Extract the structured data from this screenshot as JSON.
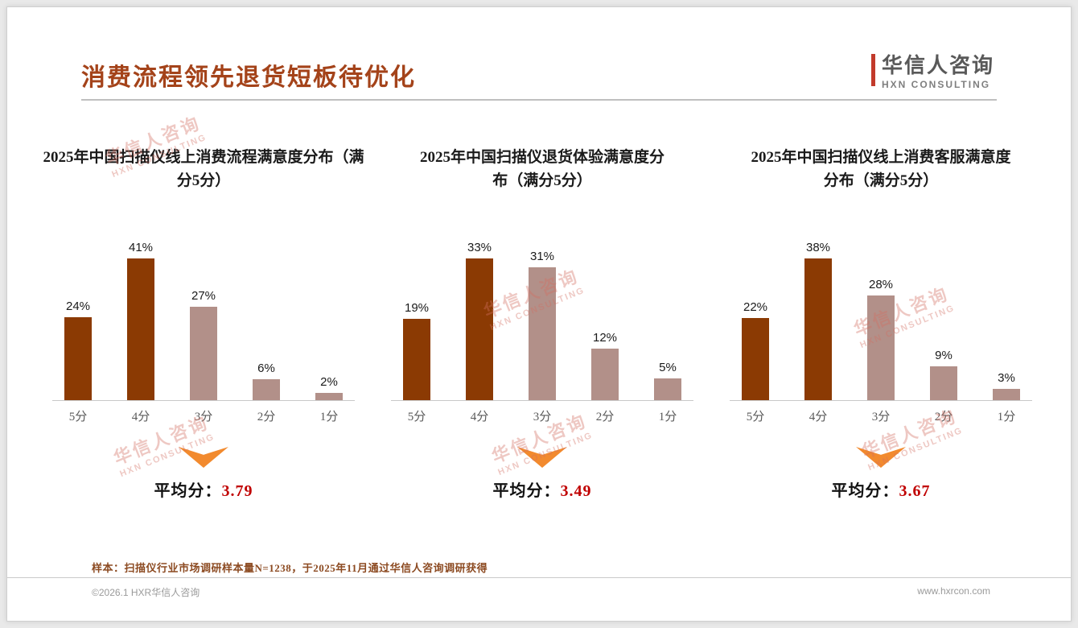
{
  "header": {
    "title": "消费流程领先退货短板待优化"
  },
  "brand": {
    "name": "华信人咨询",
    "tagline": "HXN CONSULTING"
  },
  "watermark": {
    "line1": "华信人咨询",
    "line2": "HXN CONSULTING"
  },
  "colors": {
    "title": "#A4431A",
    "bar_dark": "#8B3A03",
    "bar_light": "#B29089",
    "arrow": "#F28A2E",
    "average_value": "#C00000"
  },
  "chart_data": [
    {
      "type": "bar",
      "title": "2025年中国扫描仪线上消费流程满意度分布（满分5分）",
      "categories": [
        "5分",
        "4分",
        "3分",
        "2分",
        "1分"
      ],
      "values": [
        24,
        41,
        27,
        6,
        2
      ],
      "value_labels": [
        "24%",
        "41%",
        "27%",
        "6%",
        "2%"
      ],
      "bar_palette": [
        "dark",
        "dark",
        "light",
        "light",
        "light"
      ],
      "ylim": [
        0,
        45
      ],
      "grid": false,
      "legend": "none",
      "average_label": "平均分：",
      "average_value": "3.79"
    },
    {
      "type": "bar",
      "title": "2025年中国扫描仪退货体验满意度分布（满分5分）",
      "categories": [
        "5分",
        "4分",
        "3分",
        "2分",
        "1分"
      ],
      "values": [
        19,
        33,
        31,
        12,
        5
      ],
      "value_labels": [
        "19%",
        "33%",
        "31%",
        "12%",
        "5%"
      ],
      "bar_palette": [
        "dark",
        "dark",
        "light",
        "light",
        "light"
      ],
      "ylim": [
        0,
        36
      ],
      "grid": false,
      "legend": "none",
      "average_label": "平均分：",
      "average_value": "3.49"
    },
    {
      "type": "bar",
      "title": "2025年中国扫描仪线上消费客服满意度分布（满分5分）",
      "categories": [
        "5分",
        "4分",
        "3分",
        "2分",
        "1分"
      ],
      "values": [
        22,
        38,
        28,
        9,
        3
      ],
      "value_labels": [
        "22%",
        "38%",
        "28%",
        "9%",
        "3%"
      ],
      "bar_palette": [
        "dark",
        "dark",
        "light",
        "light",
        "light"
      ],
      "ylim": [
        0,
        42
      ],
      "grid": false,
      "legend": "none",
      "average_label": "平均分：",
      "average_value": "3.67"
    }
  ],
  "footer": {
    "note": "样本：扫描仪行业市场调研样本量N=1238，于2025年11月通过华信人咨询调研获得",
    "copyright": "©2026.1 HXR华信人咨询",
    "website": "www.hxrcon.com"
  }
}
